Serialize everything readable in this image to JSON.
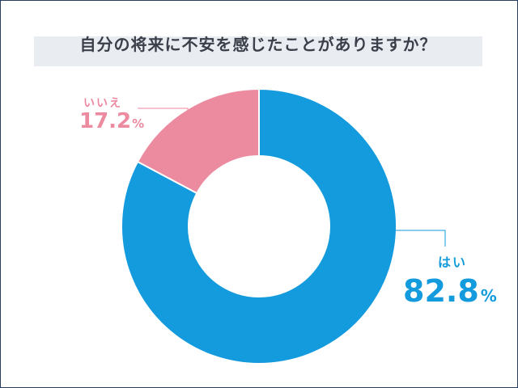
{
  "chart_data": {
    "type": "pie",
    "title": "自分の将来に不安を感じたことがありますか？",
    "slices": [
      {
        "label": "はい",
        "value": 82.8,
        "display": "82.8",
        "unit": "%",
        "color": "#139bdd"
      },
      {
        "label": "いいえ",
        "value": 17.2,
        "display": "17.2",
        "unit": "%",
        "color": "#ec8aa0"
      }
    ],
    "donut": true,
    "start_angle": "top",
    "direction": "clockwise"
  }
}
